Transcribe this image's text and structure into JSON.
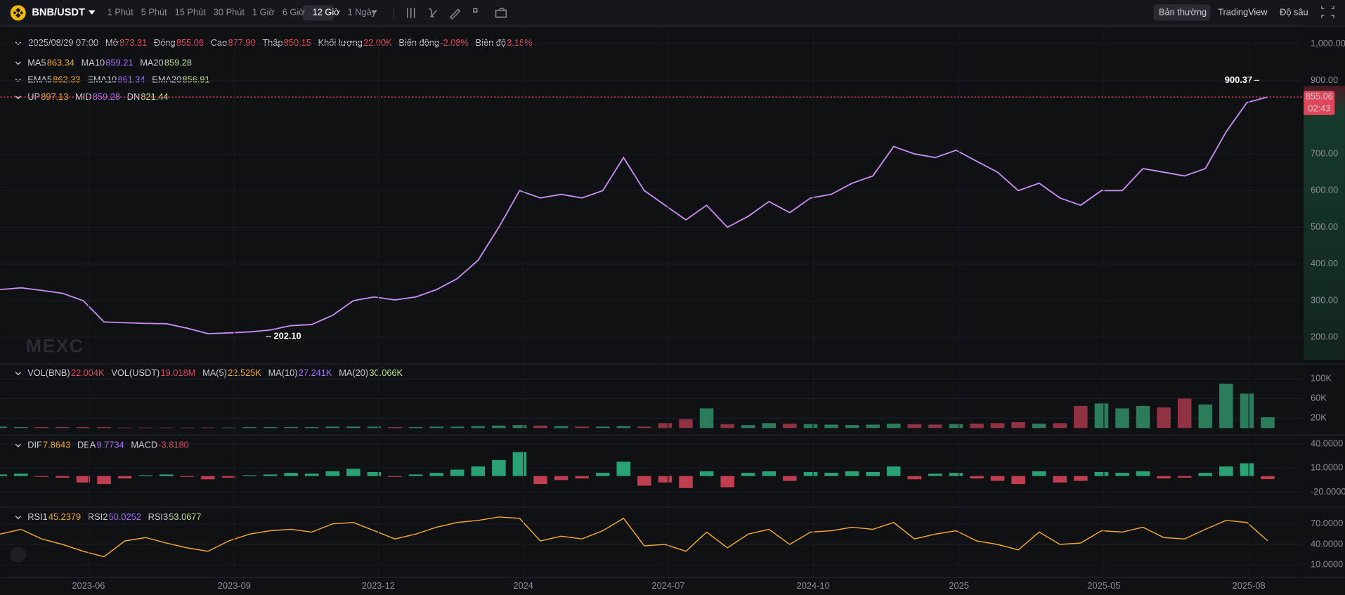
{
  "toolbar": {
    "symbol": "BNB/USDT",
    "intervals": [
      "1 Phút",
      "5 Phút",
      "15 Phút",
      "30 Phút",
      "1 Giờ",
      "6 Giờ",
      "12 Giờ",
      "1 Ngày"
    ],
    "views": [
      "Bản thường",
      "TradingView",
      "Độ sâu"
    ]
  },
  "info": {
    "date": "2025/08/29 07:00",
    "items": [
      {
        "label": "Mở",
        "value": "873.31"
      },
      {
        "label": "Đóng",
        "value": "855.06"
      },
      {
        "label": "Cao",
        "value": "877.90"
      },
      {
        "label": "Thấp",
        "value": "850.15"
      },
      {
        "label": "Khối lượng",
        "value": "22.00K"
      },
      {
        "label": "Biến động",
        "value": "-2.08%"
      },
      {
        "label": "Biên độ",
        "value": "3.18%"
      }
    ],
    "ma": [
      {
        "label": "MA5",
        "value": "863.34",
        "color": "#f0a830"
      },
      {
        "label": "MA10",
        "value": "859.21",
        "color": "#a66ef5"
      },
      {
        "label": "MA20",
        "value": "859.28",
        "color": "#b9e08c"
      }
    ],
    "ema": [
      {
        "label": "EMA5",
        "value": "862.33",
        "color": "#f0a830"
      },
      {
        "label": "EMA10",
        "value": "861.34",
        "color": "#a66ef5"
      },
      {
        "label": "EMA20",
        "value": "856.91",
        "color": "#b9e08c"
      }
    ],
    "boll": [
      {
        "label": "UP",
        "value": "897.13",
        "color": "#f0a830"
      },
      {
        "label": "MID",
        "value": "859.28",
        "color": "#a66ef5"
      },
      {
        "label": "DN",
        "value": "821.44",
        "color": "#b9e08c"
      }
    ]
  },
  "price_chart": {
    "type": "line",
    "color": "#c98ef0",
    "values": [
      330,
      335,
      328,
      320,
      300,
      242,
      240,
      238,
      237,
      225,
      210,
      212,
      215,
      220,
      232,
      235,
      260,
      300,
      310,
      302,
      310,
      330,
      360,
      410,
      500,
      600,
      580,
      590,
      580,
      600,
      690,
      600,
      560,
      520,
      560,
      500,
      530,
      570,
      540,
      580,
      590,
      620,
      640,
      720,
      700,
      690,
      710,
      680,
      650,
      600,
      620,
      580,
      560,
      600,
      600,
      660,
      650,
      640,
      660,
      760,
      840,
      855
    ],
    "ylim": [
      131,
      1033
    ],
    "yticks": [
      {
        "value": 1000,
        "label": "1,000.00"
      },
      {
        "value": 900,
        "label": "900.00"
      },
      {
        "value": 700,
        "label": "700.00"
      },
      {
        "value": 600,
        "label": "600.00"
      },
      {
        "value": 500,
        "label": "500.00"
      },
      {
        "value": 400,
        "label": "400.00"
      },
      {
        "value": 300,
        "label": "300.00"
      },
      {
        "value": 200,
        "label": "200.00"
      }
    ],
    "current": {
      "value": 855.06,
      "label": "855.06",
      "countdown": "02:43"
    },
    "high": {
      "value": 900.37,
      "label": "900.37"
    },
    "low": {
      "value": 202.1,
      "label": "202.10"
    },
    "watermark": "MEXC"
  },
  "volume_chart": {
    "type": "bar",
    "header": [
      {
        "label": "VOL(BNB)",
        "value": "22.004K",
        "color": "#e0475a"
      },
      {
        "label": "VOL(USDT)",
        "value": "19.018M",
        "color": "#e0475a"
      },
      {
        "label": "MA(5)",
        "value": "22.525K",
        "color": "#f0a830"
      },
      {
        "label": "MA(10)",
        "value": "27.241K",
        "color": "#a66ef5"
      },
      {
        "label": "MA(20)",
        "value": "30.066K",
        "color": "#b9e08c"
      }
    ],
    "values": [
      3,
      2,
      2,
      2,
      2,
      2,
      1,
      1,
      1,
      1,
      1,
      1,
      2,
      2,
      2,
      2,
      3,
      3,
      3,
      2,
      2,
      3,
      3,
      4,
      5,
      6,
      5,
      4,
      3,
      3,
      4,
      3,
      10,
      18,
      40,
      8,
      6,
      10,
      9,
      8,
      7,
      6,
      7,
      9,
      8,
      7,
      8,
      9,
      10,
      12,
      9,
      10,
      45,
      50,
      40,
      45,
      42,
      60,
      48,
      90,
      70,
      22
    ],
    "ylim": [
      -10,
      126
    ],
    "yticks": [
      {
        "value": 100,
        "label": "100K"
      },
      {
        "value": 60,
        "label": "60K"
      },
      {
        "value": 20,
        "label": "20K"
      }
    ]
  },
  "macd_chart": {
    "type": "bar",
    "header": [
      {
        "label": "DIF",
        "value": "7.8643",
        "color": "#f0a830"
      },
      {
        "label": "DEA",
        "value": "9.7734",
        "color": "#a66ef5"
      },
      {
        "label": "MACD",
        "value": "-3.8180",
        "color": "#e0475a"
      }
    ],
    "values": [
      2,
      3,
      -1,
      -2,
      -8,
      -10,
      -3,
      1,
      2,
      -1,
      -4,
      -2,
      1,
      2,
      4,
      3,
      6,
      9,
      5,
      -1,
      2,
      4,
      8,
      12,
      20,
      30,
      -10,
      -5,
      -3,
      4,
      18,
      -12,
      -8,
      -15,
      6,
      -14,
      4,
      6,
      -6,
      5,
      4,
      6,
      5,
      12,
      -4,
      3,
      4,
      -3,
      -6,
      -10,
      6,
      -8,
      -6,
      5,
      4,
      6,
      -3,
      -2,
      4,
      12,
      16,
      -3.818
    ],
    "ylim": [
      -37.2,
      48.5
    ],
    "yticks": [
      {
        "value": 40,
        "label": "40.0000"
      },
      {
        "value": 10,
        "label": "10.0000"
      },
      {
        "value": -20,
        "label": "-20.0000"
      }
    ]
  },
  "rsi_chart": {
    "type": "line",
    "color": "#f0a830",
    "header": [
      {
        "label": "RSI1",
        "value": "45.2379",
        "color": "#f0a830"
      },
      {
        "label": "RSI2",
        "value": "50.0252",
        "color": "#a66ef5"
      },
      {
        "label": "RSI3",
        "value": "53.0677",
        "color": "#b9e08c"
      }
    ],
    "values": [
      55,
      62,
      48,
      40,
      30,
      22,
      45,
      50,
      42,
      35,
      30,
      45,
      55,
      60,
      62,
      58,
      70,
      72,
      60,
      48,
      55,
      65,
      72,
      75,
      80,
      78,
      45,
      52,
      48,
      60,
      78,
      38,
      40,
      30,
      58,
      35,
      55,
      62,
      40,
      58,
      60,
      65,
      62,
      72,
      48,
      55,
      60,
      45,
      40,
      32,
      58,
      40,
      42,
      60,
      58,
      65,
      50,
      48,
      62,
      75,
      72,
      45.2379
    ],
    "ylim": [
      -7.5,
      91.25
    ],
    "yticks": [
      {
        "value": 70,
        "label": "70.0000"
      },
      {
        "value": 40,
        "label": "40.0000"
      },
      {
        "value": 10,
        "label": "10.0000"
      }
    ]
  },
  "x_axis": {
    "labels": [
      "2023-06",
      "2023-09",
      "2023-12",
      "2024",
      "2024-07",
      "2024-10",
      "2025",
      "2025-05",
      "2025-08"
    ]
  }
}
